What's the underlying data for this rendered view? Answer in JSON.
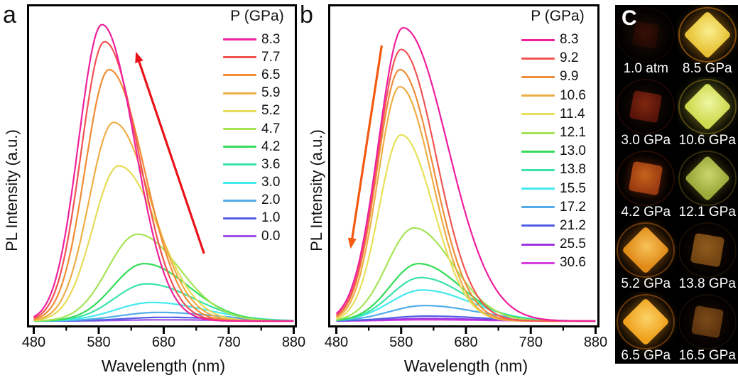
{
  "figure": {
    "panel_letters": {
      "a": "a",
      "b": "b"
    }
  },
  "chart_data": [
    {
      "id": "a",
      "type": "line",
      "title": "",
      "xlabel": "Wavelength (nm)",
      "ylabel": "PL Intensity (a.u.)",
      "xlim": [
        480,
        880
      ],
      "x_ticks": [
        480,
        580,
        680,
        780,
        880
      ],
      "grid": false,
      "legend_title": "P (GPa)",
      "legend_position": "top-right",
      "arrow": {
        "color": "#e91219",
        "from": {
          "nm": 742,
          "h": 0.22
        },
        "to": {
          "nm": 637,
          "h": 0.87
        }
      },
      "series": [
        {
          "pressure": "8.3",
          "color": "#f0219c",
          "peak_nm": 585,
          "height": 0.955,
          "width_left_nm": 36,
          "width_right_nm": 50
        },
        {
          "pressure": "7.7",
          "color": "#f25252",
          "peak_nm": 589,
          "height": 0.9,
          "width_left_nm": 36,
          "width_right_nm": 52
        },
        {
          "pressure": "6.5",
          "color": "#f08d35",
          "peak_nm": 596,
          "height": 0.81,
          "width_left_nm": 37,
          "width_right_nm": 54
        },
        {
          "pressure": "5.9",
          "color": "#efae45",
          "peak_nm": 603,
          "height": 0.64,
          "width_left_nm": 38,
          "width_right_nm": 57
        },
        {
          "pressure": "5.2",
          "color": "#e7dc58",
          "peak_nm": 611,
          "height": 0.5,
          "width_left_nm": 40,
          "width_right_nm": 60
        },
        {
          "pressure": "4.7",
          "color": "#a6e457",
          "peak_nm": 640,
          "height": 0.28,
          "width_left_nm": 46,
          "width_right_nm": 64
        },
        {
          "pressure": "4.2",
          "color": "#35dc58",
          "peak_nm": 650,
          "height": 0.185,
          "width_left_nm": 48,
          "width_right_nm": 68
        },
        {
          "pressure": "3.6",
          "color": "#3ae3a8",
          "peak_nm": 654,
          "height": 0.12,
          "width_left_nm": 50,
          "width_right_nm": 72
        },
        {
          "pressure": "3.0",
          "color": "#43e9f0",
          "peak_nm": 662,
          "height": 0.06,
          "width_left_nm": 56,
          "width_right_nm": 82
        },
        {
          "pressure": "2.0",
          "color": "#51ace9",
          "peak_nm": 672,
          "height": 0.028,
          "width_left_nm": 60,
          "width_right_nm": 88
        },
        {
          "pressure": "1.0",
          "color": "#515ee3",
          "peak_nm": 680,
          "height": 0.012,
          "width_left_nm": 62,
          "width_right_nm": 90
        },
        {
          "pressure": "0.0",
          "color": "#9c50e4",
          "peak_nm": 680,
          "height": 0.004,
          "width_left_nm": 64,
          "width_right_nm": 92
        }
      ]
    },
    {
      "id": "b",
      "type": "line",
      "title": "",
      "xlabel": "Wavelength (nm)",
      "ylabel": "PL Intensity (a.u.)",
      "xlim": [
        480,
        880
      ],
      "x_ticks": [
        480,
        580,
        680,
        780,
        880
      ],
      "grid": false,
      "legend_title": "P (GPa)",
      "legend_position": "top-right",
      "arrow": {
        "color": "#f4590f",
        "from": {
          "nm": 550,
          "h": 0.89
        },
        "to": {
          "nm": 502,
          "h": 0.235
        }
      },
      "series": [
        {
          "pressure": "8.3",
          "color": "#ef1f9e",
          "peak_nm": 583,
          "height": 0.945,
          "width_left_nm": 38,
          "width_right_nm": 68
        },
        {
          "pressure": "9.2",
          "color": "#f25555",
          "peak_nm": 580,
          "height": 0.875,
          "width_left_nm": 36,
          "width_right_nm": 54
        },
        {
          "pressure": "9.9",
          "color": "#ee8d3b",
          "peak_nm": 578,
          "height": 0.81,
          "width_left_nm": 35,
          "width_right_nm": 52
        },
        {
          "pressure": "10.6",
          "color": "#efae45",
          "peak_nm": 578,
          "height": 0.755,
          "width_left_nm": 34,
          "width_right_nm": 50
        },
        {
          "pressure": "11.4",
          "color": "#e7e058",
          "peak_nm": 580,
          "height": 0.6,
          "width_left_nm": 34,
          "width_right_nm": 50
        },
        {
          "pressure": "12.1",
          "color": "#a6e457",
          "peak_nm": 600,
          "height": 0.3,
          "width_left_nm": 42,
          "width_right_nm": 60
        },
        {
          "pressure": "13.0",
          "color": "#35dc58",
          "peak_nm": 607,
          "height": 0.185,
          "width_left_nm": 44,
          "width_right_nm": 64
        },
        {
          "pressure": "13.8",
          "color": "#3ae3a8",
          "peak_nm": 610,
          "height": 0.14,
          "width_left_nm": 46,
          "width_right_nm": 68
        },
        {
          "pressure": "15.5",
          "color": "#43e9f0",
          "peak_nm": 613,
          "height": 0.1,
          "width_left_nm": 50,
          "width_right_nm": 74
        },
        {
          "pressure": "17.2",
          "color": "#51ace9",
          "peak_nm": 616,
          "height": 0.05,
          "width_left_nm": 54,
          "width_right_nm": 80
        },
        {
          "pressure": "21.2",
          "color": "#515ee3",
          "peak_nm": 620,
          "height": 0.016,
          "width_left_nm": 58,
          "width_right_nm": 86
        },
        {
          "pressure": "25.5",
          "color": "#9b35e0",
          "peak_nm": 620,
          "height": 0.008,
          "width_left_nm": 60,
          "width_right_nm": 88
        },
        {
          "pressure": "30.6",
          "color": "#d83fe0",
          "peak_nm": 620,
          "height": 0.004,
          "width_left_nm": 60,
          "width_right_nm": 88
        }
      ]
    }
  ],
  "panel_c": {
    "label": "C",
    "cells": [
      {
        "caption": "1.0 atm",
        "shape": "square",
        "size": 34,
        "color": "#2e0a04",
        "core": "#4a1208",
        "ring": "rgba(45,14,4,0.35)",
        "glow": "none",
        "opacity": 0.55
      },
      {
        "caption": "8.5 GPa",
        "shape": "diamond",
        "size": 48,
        "color": "#e8c336",
        "core": "#f9ef8e",
        "ring": "rgba(214,120,18,0.55)",
        "glow": "0 0 20px 5px rgba(230,160,30,0.45)",
        "opacity": 1
      },
      {
        "caption": "3.0 GPa",
        "shape": "square",
        "size": 40,
        "color": "#5e150a",
        "core": "#8a2a10",
        "ring": "rgba(80,24,6,0.35)",
        "glow": "none",
        "opacity": 0.9
      },
      {
        "caption": "10.6 GPa",
        "shape": "diamond",
        "size": 48,
        "color": "#cdda4e",
        "core": "#eff7a2",
        "ring": "rgba(150,120,30,0.5)",
        "glow": "0 0 20px 5px rgba(190,200,60,0.4)",
        "opacity": 1
      },
      {
        "caption": "4.2 GPa",
        "shape": "square",
        "size": 42,
        "color": "#a03c12",
        "core": "#cf6a1e",
        "ring": "rgba(90,30,8,0.4)",
        "glow": "0 0 12px 3px rgba(160,60,15,0.3)",
        "opacity": 0.95
      },
      {
        "caption": "12.1 GPa",
        "shape": "diamond",
        "size": 46,
        "color": "#a2b23c",
        "core": "#d4e173",
        "ring": "rgba(110,90,26,0.45)",
        "glow": "0 0 14px 3px rgba(150,160,50,0.3)",
        "opacity": 0.95
      },
      {
        "caption": "5.2 GPa",
        "shape": "diamond",
        "size": 48,
        "color": "#e08a18",
        "core": "#f7c258",
        "ring": "rgba(190,95,15,0.5)",
        "glow": "0 0 18px 5px rgba(220,130,25,0.4)",
        "opacity": 1
      },
      {
        "caption": "13.8 GPa",
        "shape": "square",
        "size": 42,
        "color": "#7c4a14",
        "core": "#9c6420",
        "ring": "rgba(70,40,10,0.35)",
        "glow": "none",
        "opacity": 0.9
      },
      {
        "caption": "6.5 GPa",
        "shape": "diamond",
        "size": 48,
        "color": "#efa21e",
        "core": "#fbd268",
        "ring": "rgba(190,95,15,0.5)",
        "glow": "0 0 18px 5px rgba(230,150,30,0.4)",
        "opacity": 1
      },
      {
        "caption": "16.5 GPa",
        "shape": "square",
        "size": 40,
        "color": "#6b3c12",
        "core": "#8a551c",
        "ring": "rgba(60,34,8,0.35)",
        "glow": "none",
        "opacity": 0.85
      }
    ]
  }
}
